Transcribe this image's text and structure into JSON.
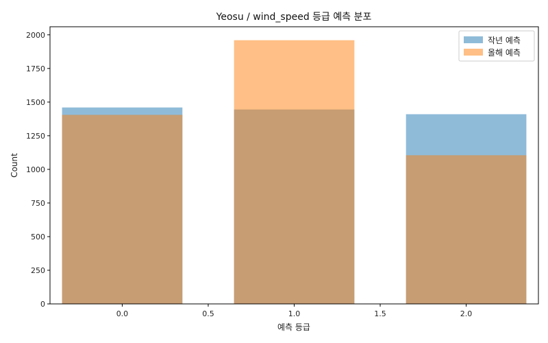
{
  "chart_data": {
    "type": "bar",
    "title": "Yeosu / wind_speed 등급 예측 분포",
    "xlabel": "예측 등급",
    "ylabel": "Count",
    "categories": [
      0,
      1,
      2
    ],
    "series": [
      {
        "name": "작년 예측",
        "values": [
          1460,
          1445,
          1410
        ],
        "color": "#1f77b4"
      },
      {
        "name": "올해 예측",
        "values": [
          1405,
          1960,
          1105
        ],
        "color": "#ff7f0e"
      }
    ],
    "bar_width": 0.7,
    "alpha": 0.5,
    "xlim": [
      -0.42,
      2.42
    ],
    "ylim": [
      0,
      2060
    ],
    "x_ticks": [
      0.0,
      0.5,
      1.0,
      1.5,
      2.0
    ],
    "x_tick_labels": [
      "0.0",
      "0.5",
      "1.0",
      "1.5",
      "2.0"
    ],
    "y_ticks": [
      0,
      250,
      500,
      750,
      1000,
      1250,
      1500,
      1750,
      2000
    ],
    "y_tick_labels": [
      "0",
      "250",
      "500",
      "750",
      "1000",
      "1250",
      "1500",
      "1750",
      "2000"
    ],
    "legend": "top-right",
    "grid": false
  }
}
